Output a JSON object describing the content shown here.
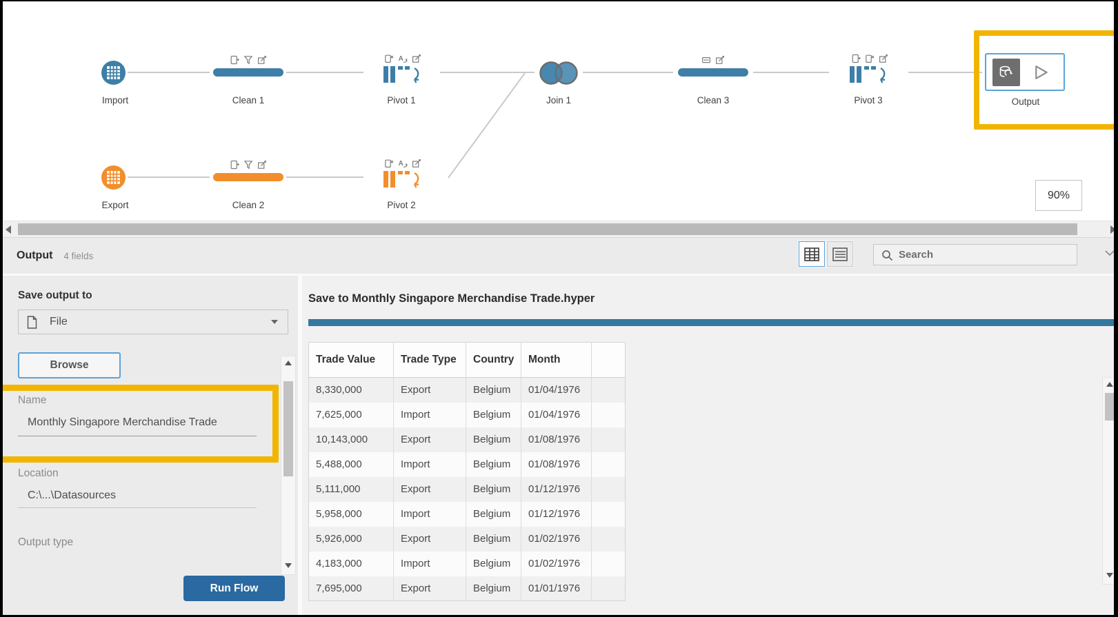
{
  "flow": {
    "zoom_level": "90%",
    "nodes": [
      {
        "label": "Import",
        "type": "input-table",
        "color": "blue"
      },
      {
        "label": "Clean 1",
        "type": "clean",
        "color": "blue",
        "badges": [
          "fields-icon",
          "filter-icon",
          "edit-icon"
        ]
      },
      {
        "label": "Pivot 1",
        "type": "pivot",
        "color": "blue",
        "badges": [
          "remove-field-icon",
          "rename-field-icon",
          "edit-icon"
        ]
      },
      {
        "label": "Join 1",
        "type": "join",
        "color": "blue"
      },
      {
        "label": "Clean 3",
        "type": "clean",
        "color": "blue",
        "badges": [
          "merge-fields-icon",
          "edit-icon"
        ]
      },
      {
        "label": "Pivot 3",
        "type": "pivot",
        "color": "blue",
        "badges": [
          "fields-icon",
          "remove-field-icon",
          "edit-icon"
        ]
      },
      {
        "label": "Output",
        "type": "output",
        "color": "blue",
        "badges": [
          "database-icon",
          "run-icon"
        ]
      },
      {
        "label": "Export",
        "type": "input-table",
        "color": "orange"
      },
      {
        "label": "Clean 2",
        "type": "clean",
        "color": "orange",
        "badges": [
          "fields-icon",
          "filter-icon",
          "edit-icon"
        ]
      },
      {
        "label": "Pivot 2",
        "type": "pivot",
        "color": "orange",
        "badges": [
          "remove-field-icon",
          "rename-field-icon",
          "edit-icon"
        ]
      }
    ]
  },
  "pane_header": {
    "title": "Output",
    "fields_count": "4 fields",
    "search_placeholder": "Search",
    "icons": [
      "grid-view-icon",
      "list-view-icon",
      "search-icon",
      "chevron-down-icon"
    ]
  },
  "left_panel": {
    "save_output_to_label": "Save output to",
    "destination_value": "File",
    "destination_icon": "file-icon",
    "browse_label": "Browse",
    "name_label": "Name",
    "name_value": "Monthly Singapore Merchandise Trade",
    "location_label": "Location",
    "location_value": "C:\\...\\Datasources",
    "output_type_label": "Output type",
    "run_flow_label": "Run Flow"
  },
  "grid": {
    "save_heading": "Save to Monthly Singapore Merchandise Trade.hyper",
    "table": {
      "columns": [
        "Trade Value",
        "Trade Type",
        "Country",
        "Month"
      ],
      "rows": [
        [
          "8,330,000",
          "Export",
          "Belgium",
          "01/04/1976"
        ],
        [
          "7,625,000",
          "Import",
          "Belgium",
          "01/04/1976"
        ],
        [
          "10,143,000",
          "Export",
          "Belgium",
          "01/08/1976"
        ],
        [
          "5,488,000",
          "Import",
          "Belgium",
          "01/08/1976"
        ],
        [
          "5,111,000",
          "Export",
          "Belgium",
          "01/12/1976"
        ],
        [
          "5,958,000",
          "Import",
          "Belgium",
          "01/12/1976"
        ],
        [
          "5,926,000",
          "Export",
          "Belgium",
          "01/02/1976"
        ],
        [
          "4,183,000",
          "Import",
          "Belgium",
          "01/02/1976"
        ],
        [
          "7,695,000",
          "Export",
          "Belgium",
          "01/01/1976"
        ]
      ]
    }
  },
  "colors": {
    "accent_blue": "#3D7FA7",
    "accent_orange": "#F28E2B",
    "highlight_yellow": "#F1B500",
    "node_selected_border": "#5CA2D8",
    "accent_bar_blue": "#35789F",
    "run_button_blue": "#2A69A1"
  }
}
